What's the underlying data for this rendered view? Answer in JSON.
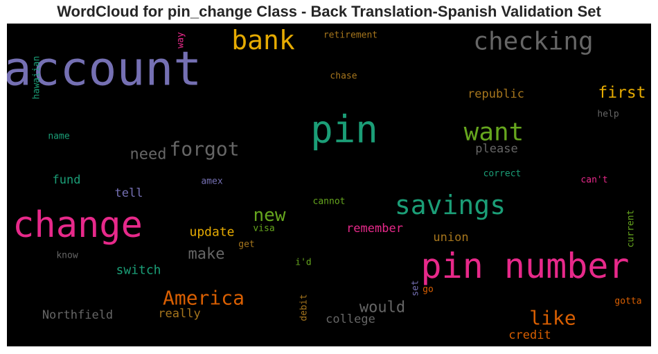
{
  "chart_data": {
    "type": "wordcloud",
    "title": "WordCloud for pin_change Class - Back Translation-Spanish Validation Set",
    "background": "#000000",
    "words": [
      {
        "text": "account",
        "color": "#7570b3"
      },
      {
        "text": "bank",
        "color": "#e6ab02"
      },
      {
        "text": "checking",
        "color": "#666666"
      },
      {
        "text": "retirement",
        "color": "#a6761d"
      },
      {
        "text": "way",
        "color": "#e7298a"
      },
      {
        "text": "hawaiian",
        "color": "#1b9e77"
      },
      {
        "text": "chase",
        "color": "#a6761d"
      },
      {
        "text": "republic",
        "color": "#a6761d"
      },
      {
        "text": "first",
        "color": "#e6ab02"
      },
      {
        "text": "help",
        "color": "#666666"
      },
      {
        "text": "pin",
        "color": "#1b9e77"
      },
      {
        "text": "want",
        "color": "#66a61e"
      },
      {
        "text": "name",
        "color": "#1b9e77"
      },
      {
        "text": "forgot",
        "color": "#666666"
      },
      {
        "text": "need",
        "color": "#666666"
      },
      {
        "text": "please",
        "color": "#666666"
      },
      {
        "text": "correct",
        "color": "#1b9e77"
      },
      {
        "text": "fund",
        "color": "#1b9e77"
      },
      {
        "text": "tell",
        "color": "#7570b3"
      },
      {
        "text": "amex",
        "color": "#7570b3"
      },
      {
        "text": "can't",
        "color": "#e7298a"
      },
      {
        "text": "cannot",
        "color": "#66a61e"
      },
      {
        "text": "savings",
        "color": "#1b9e77"
      },
      {
        "text": "change",
        "color": "#e7298a"
      },
      {
        "text": "new",
        "color": "#66a61e"
      },
      {
        "text": "current",
        "color": "#66a61e"
      },
      {
        "text": "update",
        "color": "#e6ab02"
      },
      {
        "text": "visa",
        "color": "#66a61e"
      },
      {
        "text": "remember",
        "color": "#e7298a"
      },
      {
        "text": "union",
        "color": "#a6761d"
      },
      {
        "text": "make",
        "color": "#666666"
      },
      {
        "text": "get",
        "color": "#a6761d"
      },
      {
        "text": "know",
        "color": "#666666"
      },
      {
        "text": "i'd",
        "color": "#66a61e"
      },
      {
        "text": "pin number",
        "color": "#e7298a"
      },
      {
        "text": "switch",
        "color": "#1b9e77"
      },
      {
        "text": "set",
        "color": "#7570b3"
      },
      {
        "text": "go",
        "color": "#d95f02"
      },
      {
        "text": "America",
        "color": "#d95f02"
      },
      {
        "text": "would",
        "color": "#666666"
      },
      {
        "text": "debit",
        "color": "#a6761d"
      },
      {
        "text": "like",
        "color": "#d95f02"
      },
      {
        "text": "gotta",
        "color": "#d95f02"
      },
      {
        "text": "Northfield",
        "color": "#666666"
      },
      {
        "text": "really",
        "color": "#a6761d"
      },
      {
        "text": "college",
        "color": "#666666"
      },
      {
        "text": "credit",
        "color": "#d95f02"
      }
    ]
  }
}
